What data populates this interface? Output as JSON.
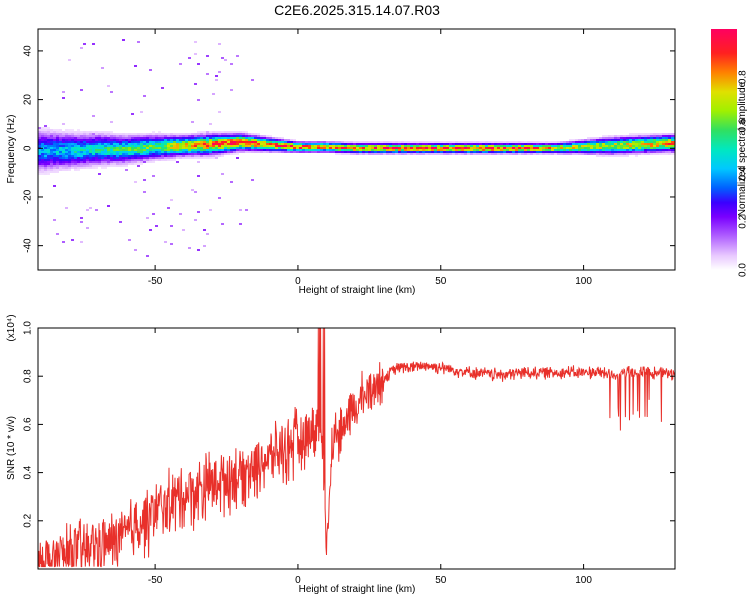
{
  "title": "C2E6.2025.315.14.07.R03",
  "colors": {
    "snr_line": "#e8302a",
    "axis": "#000000",
    "colormap": [
      "#ffffff",
      "#e8c8ff",
      "#b060ff",
      "#7a00ff",
      "#3a00ff",
      "#0060ff",
      "#00c8ff",
      "#00e8c0",
      "#30e060",
      "#a0f000",
      "#e0e000",
      "#ff8000",
      "#ff2020",
      "#ff0060"
    ]
  },
  "chart_data": [
    {
      "type": "heatmap",
      "title": "C2E6.2025.315.14.07.R03",
      "xlabel": "Height of straight line (km)",
      "ylabel": "Frequency (Hz)",
      "xlim": [
        -91,
        132
      ],
      "ylim": [
        -50,
        49
      ],
      "x_ticks": [
        -50,
        0,
        50,
        100
      ],
      "x_tick_labels": [
        "-50",
        "0",
        "50",
        "100"
      ],
      "y_ticks": [
        -40,
        -20,
        0,
        20,
        40
      ],
      "y_tick_labels": [
        "-40",
        "-20",
        "0",
        "20",
        "40"
      ],
      "colorbar": {
        "label": "Normalized spectral amplitude",
        "range": [
          0,
          1
        ],
        "ticks": [
          0.0,
          0.2,
          0.4,
          0.6,
          0.8
        ],
        "tick_labels": [
          "0.0",
          "0.2",
          "0.4",
          "0.6",
          "0.8"
        ]
      },
      "ridge": {
        "description": "Spectral energy concentrated near 0–3 Hz along the whole height range",
        "x": [
          -90,
          -80,
          -70,
          -60,
          -50,
          -40,
          -30,
          -20,
          -10,
          0,
          10,
          20,
          30,
          40,
          50,
          60,
          70,
          80,
          90,
          100,
          110,
          120,
          130
        ],
        "center_hz": [
          -1,
          -1,
          -0.5,
          -0.5,
          0.5,
          1,
          1.5,
          2.5,
          1.5,
          0.5,
          0.5,
          0,
          0,
          0,
          0,
          0,
          0,
          0,
          0,
          0.5,
          1,
          1.5,
          2
        ],
        "width_hz": [
          12,
          10,
          9,
          8,
          7,
          6,
          6,
          5,
          4,
          3,
          3,
          3,
          3,
          3,
          3,
          3,
          3,
          3,
          3,
          4,
          5,
          5,
          5
        ],
        "peak_amplitude": [
          0.45,
          0.5,
          0.55,
          0.6,
          0.65,
          0.8,
          0.9,
          0.95,
          0.9,
          0.95,
          0.85,
          0.9,
          0.95,
          0.9,
          0.9,
          0.95,
          0.95,
          0.9,
          0.8,
          0.75,
          0.75,
          0.8,
          0.85
        ]
      }
    },
    {
      "type": "line",
      "xlabel": "Height of straight line (km)",
      "ylabel": "SNR (10 * v/v)",
      "y_multiplier": "(x10⁴)",
      "xlim": [
        -91,
        132
      ],
      "ylim": [
        0,
        1.0
      ],
      "x_ticks": [
        -50,
        0,
        50,
        100
      ],
      "x_tick_labels": [
        "-50",
        "0",
        "50",
        "100"
      ],
      "y_ticks": [
        0.2,
        0.4,
        0.6,
        0.8,
        1.0
      ],
      "y_tick_labels": [
        "0.2",
        "0.4",
        "0.6",
        "0.8",
        "1.0"
      ],
      "series": [
        {
          "name": "SNR",
          "x": [
            -91,
            -85,
            -80,
            -75,
            -70,
            -65,
            -60,
            -55,
            -50,
            -45,
            -40,
            -35,
            -30,
            -25,
            -20,
            -15,
            -10,
            -5,
            0,
            5,
            8,
            10,
            12,
            15,
            20,
            25,
            30,
            35,
            40,
            45,
            50,
            55,
            60,
            70,
            80,
            90,
            100,
            105,
            110,
            115,
            120,
            125,
            130,
            132
          ],
          "y": [
            0.05,
            0.06,
            0.08,
            0.1,
            0.12,
            0.13,
            0.16,
            0.22,
            0.25,
            0.3,
            0.33,
            0.35,
            0.38,
            0.4,
            0.42,
            0.45,
            0.48,
            0.52,
            0.55,
            0.6,
            0.62,
            0.1,
            0.55,
            0.6,
            0.68,
            0.76,
            0.8,
            0.84,
            0.84,
            0.85,
            0.84,
            0.83,
            0.82,
            0.81,
            0.82,
            0.82,
            0.82,
            0.82,
            0.81,
            0.82,
            0.82,
            0.82,
            0.82,
            0.81
          ]
        }
      ]
    }
  ]
}
